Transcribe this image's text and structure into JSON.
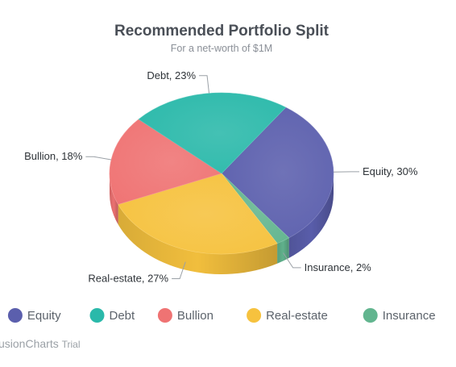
{
  "chart_data": {
    "type": "pie",
    "variant": "3d-pie",
    "title": "Recommended Portfolio Split",
    "subtitle": "For a net-worth of $1M",
    "slices": [
      {
        "label": "Equity",
        "value": 30,
        "display": "Equity, 30%",
        "color": "#5b5fad"
      },
      {
        "label": "Insurance",
        "value": 2,
        "display": "Insurance, 2%",
        "color": "#62b58f"
      },
      {
        "label": "Real-estate",
        "value": 27,
        "display": "Real-estate, 27%",
        "color": "#f6c23e"
      },
      {
        "label": "Bullion",
        "value": 18,
        "display": "Bullion, 18%",
        "color": "#ef7373"
      },
      {
        "label": "Debt",
        "value": 23,
        "display": "Debt, 23%",
        "color": "#2ab9aa"
      }
    ],
    "legend": {
      "placement": "bottom",
      "items": [
        {
          "label": "Equity",
          "color": "#5b5fad"
        },
        {
          "label": "Debt",
          "color": "#2ab9aa"
        },
        {
          "label": "Bullion",
          "color": "#ef7373"
        },
        {
          "label": "Real-estate",
          "color": "#f6c23e"
        },
        {
          "label": "Insurance",
          "color": "#62b58f"
        }
      ]
    }
  },
  "watermark": {
    "brand": "usionCharts",
    "trial": "Trial"
  }
}
